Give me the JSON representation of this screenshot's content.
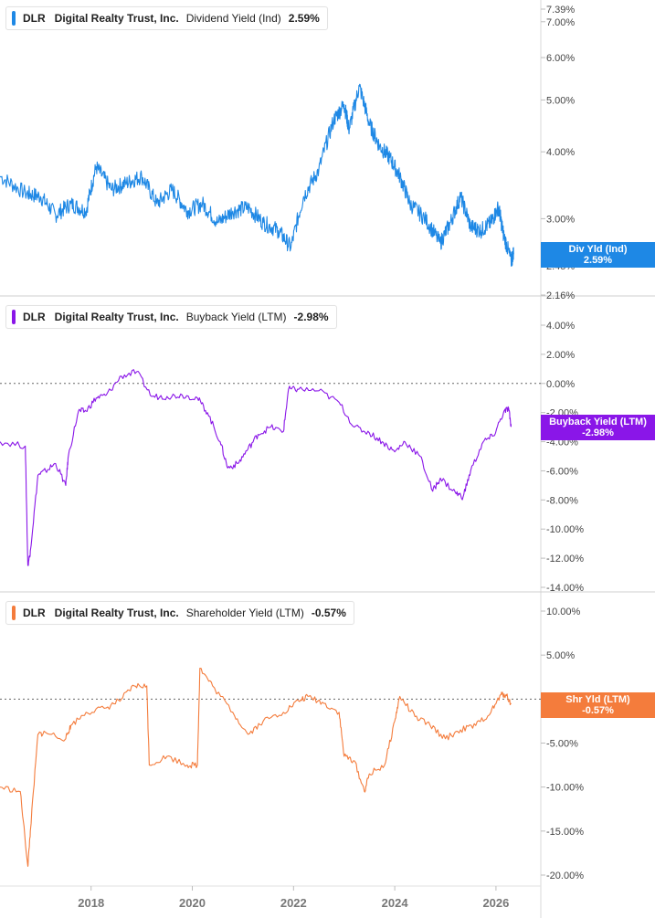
{
  "panels": [
    {
      "ticker": "DLR",
      "company": "Digital Realty Trust, Inc.",
      "metric": "Dividend Yield (Ind)",
      "value": "2.59%",
      "tag_label": "Div Yld (Ind)",
      "tag_value": "2.59%",
      "color": "#1e88e5"
    },
    {
      "ticker": "DLR",
      "company": "Digital Realty Trust, Inc.",
      "metric": "Buyback Yield (LTM)",
      "value": "-2.98%",
      "tag_label": "Buyback Yield (LTM)",
      "tag_value": "-2.98%",
      "color": "#8a16e8"
    },
    {
      "ticker": "DLR",
      "company": "Digital Realty Trust, Inc.",
      "metric": "Shareholder Yield (LTM)",
      "value": "-0.57%",
      "tag_label": "Shr Yld (LTM)",
      "tag_value": "-0.57%",
      "color": "#f47c3c"
    }
  ],
  "x_axis_labels": [
    "2018",
    "2020",
    "2022",
    "2024",
    "2026"
  ],
  "chart_data": [
    {
      "type": "line",
      "title": "DLR Digital Realty Trust, Inc. Dividend Yield (Ind) 2.59%",
      "scale": "log",
      "y_tick_labels": [
        "7.39%",
        "7.00%",
        "6.00%",
        "5.00%",
        "4.00%",
        "3.00%",
        "2.45%",
        "2.16%"
      ],
      "y_ticks": [
        7.39,
        7.0,
        6.0,
        5.0,
        4.0,
        3.0,
        2.45,
        2.16
      ],
      "ylim": [
        2.16,
        7.39
      ],
      "series": [
        {
          "x": [
            2016.2,
            2016.7,
            2017.0,
            2017.3,
            2017.6,
            2017.9,
            2018.1,
            2018.4,
            2018.7,
            2019.0,
            2019.3,
            2019.6,
            2019.9,
            2020.2,
            2020.5,
            2020.8,
            2021.1,
            2021.4,
            2021.7,
            2021.95,
            2022.2,
            2022.5,
            2022.8,
            2023.0,
            2023.1,
            2023.3,
            2023.5,
            2023.7,
            2023.9,
            2024.1,
            2024.3,
            2024.6,
            2024.9,
            2025.1,
            2025.3,
            2025.5,
            2025.7,
            2025.9,
            2026.05,
            2026.15,
            2026.3,
            2026.35
          ],
          "values": [
            3.6,
            3.35,
            3.3,
            3.05,
            3.2,
            3.1,
            3.75,
            3.4,
            3.5,
            3.6,
            3.2,
            3.4,
            3.1,
            3.2,
            2.95,
            3.1,
            3.15,
            2.95,
            2.85,
            2.65,
            3.3,
            3.7,
            4.6,
            4.9,
            4.4,
            5.3,
            4.5,
            4.1,
            3.9,
            3.6,
            3.2,
            3.0,
            2.7,
            2.95,
            3.3,
            2.9,
            2.85,
            2.95,
            3.15,
            2.8,
            2.5,
            2.59
          ]
        }
      ]
    },
    {
      "type": "line",
      "title": "DLR Digital Realty Trust, Inc. Buyback Yield (LTM) -2.98%",
      "y_tick_labels": [
        "4.00%",
        "2.00%",
        "0.00%",
        "-2.00%",
        "-4.00%",
        "-6.00%",
        "-8.00%",
        "-10.00%",
        "-12.00%",
        "-14.00%"
      ],
      "y_ticks": [
        4,
        2,
        0,
        -2,
        -4,
        -6,
        -8,
        -10,
        -12,
        -14
      ],
      "ylim": [
        -14,
        4
      ],
      "series": [
        {
          "x": [
            2016.2,
            2016.7,
            2016.75,
            2016.8,
            2016.95,
            2017.1,
            2017.3,
            2017.5,
            2017.55,
            2017.75,
            2017.9,
            2018.1,
            2018.3,
            2018.6,
            2018.9,
            2019.2,
            2019.5,
            2019.8,
            2020.1,
            2020.3,
            2020.55,
            2020.7,
            2020.9,
            2021.1,
            2021.3,
            2021.55,
            2021.8,
            2021.9,
            2022.1,
            2022.5,
            2022.9,
            2023.2,
            2023.5,
            2023.75,
            2024.0,
            2024.2,
            2024.5,
            2024.75,
            2024.9,
            2025.2,
            2025.35,
            2025.5,
            2025.75,
            2025.95,
            2026.15,
            2026.25,
            2026.3
          ],
          "values": [
            -4.0,
            -4.3,
            -12.5,
            -11.5,
            -6.3,
            -6.0,
            -5.5,
            -7.0,
            -5.0,
            -1.9,
            -1.9,
            -1.0,
            -0.8,
            0.5,
            0.8,
            -0.9,
            -0.9,
            -0.8,
            -1.0,
            -2.0,
            -4.0,
            -5.8,
            -5.5,
            -4.5,
            -3.5,
            -3.0,
            -3.3,
            -0.4,
            -0.4,
            -0.5,
            -1.3,
            -3.0,
            -3.4,
            -4.0,
            -4.7,
            -4.0,
            -5.0,
            -7.4,
            -6.5,
            -7.5,
            -7.8,
            -6.0,
            -4.0,
            -3.6,
            -2.0,
            -1.7,
            -2.98
          ]
        }
      ]
    },
    {
      "type": "line",
      "title": "DLR Digital Realty Trust, Inc. Shareholder Yield (LTM) -0.57%",
      "y_tick_labels": [
        "10.00%",
        "5.00%",
        "0.00%",
        "-5.00%",
        "-10.00%",
        "-15.00%",
        "-20.00%"
      ],
      "y_ticks": [
        10,
        5,
        0,
        -5,
        -10,
        -15,
        -20
      ],
      "ylim": [
        -20,
        10
      ],
      "series": [
        {
          "x": [
            2016.2,
            2016.6,
            2016.75,
            2016.8,
            2016.95,
            2017.1,
            2017.5,
            2017.6,
            2017.9,
            2018.3,
            2018.6,
            2018.85,
            2019.1,
            2019.15,
            2019.5,
            2019.9,
            2020.1,
            2020.15,
            2020.4,
            2020.8,
            2021.1,
            2021.4,
            2021.8,
            2022.1,
            2022.3,
            2022.6,
            2022.9,
            2023.0,
            2023.2,
            2023.4,
            2023.5,
            2023.8,
            2024.0,
            2024.1,
            2024.4,
            2024.7,
            2025.0,
            2025.3,
            2025.6,
            2025.9,
            2026.1,
            2026.2,
            2026.3
          ],
          "values": [
            -10.0,
            -10.5,
            -19.0,
            -15.0,
            -4.0,
            -3.8,
            -4.5,
            -3.0,
            -1.5,
            -1.0,
            0.0,
            1.5,
            1.5,
            -7.5,
            -6.5,
            -7.5,
            -7.5,
            3.5,
            1.5,
            -1.5,
            -4.0,
            -2.5,
            -1.5,
            -0.2,
            0.3,
            -0.5,
            -1.5,
            -6.5,
            -7.0,
            -10.5,
            -8.5,
            -7.5,
            -2.5,
            0.3,
            -2.0,
            -3.0,
            -4.5,
            -3.5,
            -3.0,
            -1.5,
            0.5,
            0.5,
            -0.57
          ]
        }
      ]
    }
  ]
}
